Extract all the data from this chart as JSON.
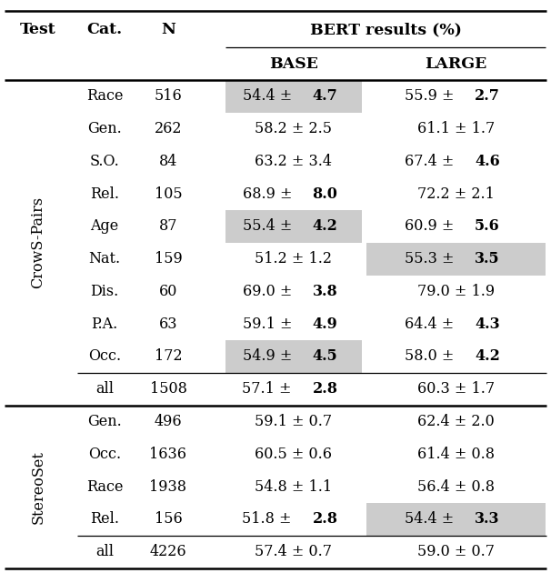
{
  "section1_label": "CrowS-Pairs",
  "section2_label": "StereoSet",
  "rows_crows": [
    {
      "cat": "Race",
      "n": "516",
      "base_normal": "54.4 ± ",
      "base_bold": "4.7",
      "base_shaded": true,
      "large_normal": "55.9 ± ",
      "large_bold": "2.7",
      "large_shaded": false
    },
    {
      "cat": "Gen.",
      "n": "262",
      "base_normal": "58.2 ± 2.5",
      "base_bold": "",
      "base_shaded": false,
      "large_normal": "61.1 ± 1.7",
      "large_bold": "",
      "large_shaded": false
    },
    {
      "cat": "S.O.",
      "n": "84",
      "base_normal": "63.2 ± 3.4",
      "base_bold": "",
      "base_shaded": false,
      "large_normal": "67.4 ± ",
      "large_bold": "4.6",
      "large_shaded": false
    },
    {
      "cat": "Rel.",
      "n": "105",
      "base_normal": "68.9 ± ",
      "base_bold": "8.0",
      "base_shaded": false,
      "large_normal": "72.2 ± 2.1",
      "large_bold": "",
      "large_shaded": false
    },
    {
      "cat": "Age",
      "n": "87",
      "base_normal": "55.4 ± ",
      "base_bold": "4.2",
      "base_shaded": true,
      "large_normal": "60.9 ± ",
      "large_bold": "5.6",
      "large_shaded": false
    },
    {
      "cat": "Nat.",
      "n": "159",
      "base_normal": "51.2 ± 1.2",
      "base_bold": "",
      "base_shaded": false,
      "large_normal": "55.3 ± ",
      "large_bold": "3.5",
      "large_shaded": true
    },
    {
      "cat": "Dis.",
      "n": "60",
      "base_normal": "69.0 ± ",
      "base_bold": "3.8",
      "base_shaded": false,
      "large_normal": "79.0 ± 1.9",
      "large_bold": "",
      "large_shaded": false
    },
    {
      "cat": "P.A.",
      "n": "63",
      "base_normal": "59.1 ± ",
      "base_bold": "4.9",
      "base_shaded": false,
      "large_normal": "64.4 ± ",
      "large_bold": "4.3",
      "large_shaded": false
    },
    {
      "cat": "Occ.",
      "n": "172",
      "base_normal": "54.9 ± ",
      "base_bold": "4.5",
      "base_shaded": true,
      "large_normal": "58.0 ± ",
      "large_bold": "4.2",
      "large_shaded": false
    }
  ],
  "row_crows_all": {
    "cat": "all",
    "n": "1508",
    "base_normal": "57.1 ± ",
    "base_bold": "2.8",
    "large_normal": "60.3 ± 1.7",
    "large_bold": ""
  },
  "rows_stereo": [
    {
      "cat": "Gen.",
      "n": "496",
      "base_normal": "59.1 ± 0.7",
      "base_bold": "",
      "base_shaded": false,
      "large_normal": "62.4 ± 2.0",
      "large_bold": "",
      "large_shaded": false
    },
    {
      "cat": "Occ.",
      "n": "1636",
      "base_normal": "60.5 ± 0.6",
      "base_bold": "",
      "base_shaded": false,
      "large_normal": "61.4 ± 0.8",
      "large_bold": "",
      "large_shaded": false
    },
    {
      "cat": "Race",
      "n": "1938",
      "base_normal": "54.8 ± 1.1",
      "base_bold": "",
      "base_shaded": false,
      "large_normal": "56.4 ± 0.8",
      "large_bold": "",
      "large_shaded": false
    },
    {
      "cat": "Rel.",
      "n": "156",
      "base_normal": "51.8 ± ",
      "base_bold": "2.8",
      "base_shaded": false,
      "large_normal": "54.4 ± ",
      "large_bold": "3.3",
      "large_shaded": true
    }
  ],
  "row_stereo_all": {
    "cat": "all",
    "n": "4226",
    "base_normal": "57.4 ± 0.7",
    "base_bold": "",
    "large_normal": "59.0 ± 0.7",
    "large_bold": ""
  },
  "shade_color": "#cccccc",
  "line_color": "#000000",
  "bg_color": "#ffffff",
  "font_size": 11.5,
  "header_font_size": 12.5
}
